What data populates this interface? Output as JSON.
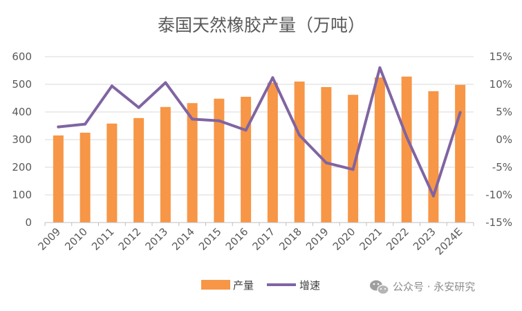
{
  "chart_data": {
    "type": "bar+line",
    "title": "泰国天然橡胶产量（万吨）",
    "categories": [
      "2009",
      "2010",
      "2011",
      "2012",
      "2013",
      "2014",
      "2015",
      "2016",
      "2017",
      "2018",
      "2019",
      "2020",
      "2021",
      "2022",
      "2023",
      "2024E"
    ],
    "series": [
      {
        "name": "产量",
        "type": "bar",
        "axis": "left",
        "color": "#F79646",
        "values": [
          315,
          325,
          358,
          378,
          418,
          432,
          448,
          455,
          506,
          510,
          490,
          462,
          525,
          528,
          475,
          498
        ]
      },
      {
        "name": "增速",
        "type": "line",
        "axis": "right",
        "color": "#8064A2",
        "values": [
          0.023,
          0.028,
          0.097,
          0.058,
          0.103,
          0.037,
          0.034,
          0.017,
          0.112,
          0.008,
          -0.042,
          -0.054,
          0.13,
          0.005,
          -0.102,
          0.049
        ]
      }
    ],
    "left_axis": {
      "ylim": [
        0,
        600
      ],
      "ticks": [
        "0",
        "100",
        "200",
        "300",
        "400",
        "500",
        "600"
      ]
    },
    "right_axis": {
      "ylim": [
        -0.15,
        0.15
      ],
      "ticks": [
        "-15%",
        "-10%",
        "-5%",
        "0%",
        "5%",
        "10%",
        "15%"
      ]
    },
    "grid": true,
    "legend_position": "bottom"
  },
  "watermark": {
    "text": "公众号 · 永安研究",
    "icon": "wechat-icon"
  }
}
